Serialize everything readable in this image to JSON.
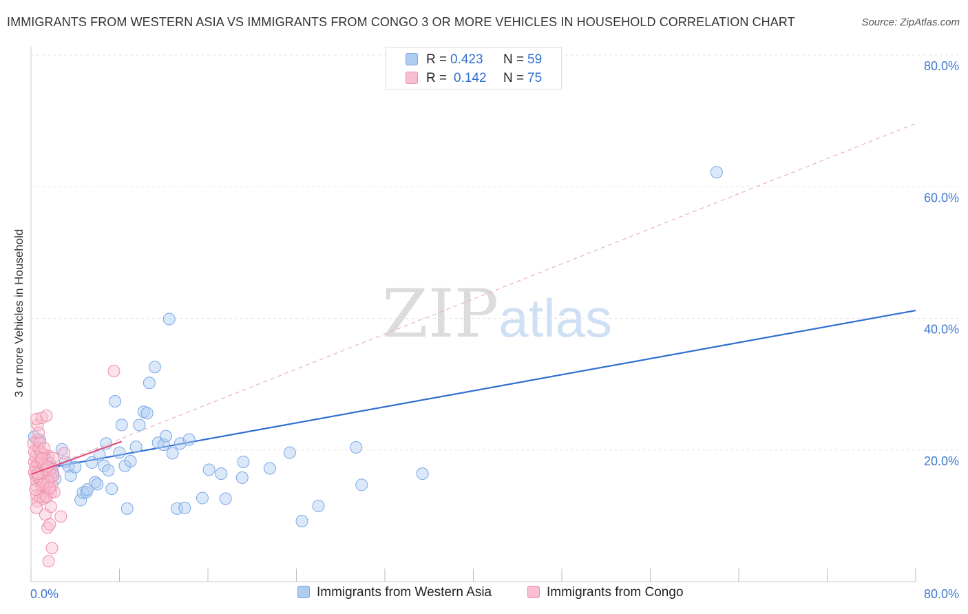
{
  "title": "IMMIGRANTS FROM WESTERN ASIA VS IMMIGRANTS FROM CONGO 3 OR MORE VEHICLES IN HOUSEHOLD CORRELATION CHART",
  "source": "Source: ZipAtlas.com",
  "watermark": {
    "zip": "ZIP",
    "atlas": "atlas"
  },
  "legend": {
    "r_label": "R =",
    "n_label": "N =",
    "series": [
      {
        "name": "Immigrants from Western Asia",
        "r": "0.423",
        "n": "59",
        "fill": "#aecbf2",
        "stroke": "#7aa6e6"
      },
      {
        "name": "Immigrants from Congo",
        "r": "0.142",
        "n": "75",
        "fill": "#f8bfd0",
        "stroke": "#ee8fab"
      }
    ]
  },
  "chart_data": {
    "type": "scatter",
    "title": "IMMIGRANTS FROM WESTERN ASIA VS IMMIGRANTS FROM CONGO 3 OR MORE VEHICLES IN HOUSEHOLD CORRELATION CHART",
    "xlabel": "",
    "ylabel": "3 or more Vehicles in Household",
    "xlim": [
      0,
      80
    ],
    "ylim": [
      0,
      80
    ],
    "x_tick_labels": [
      "0.0%",
      "80.0%"
    ],
    "y_tick_labels": [
      "20.0%",
      "40.0%",
      "60.0%",
      "80.0%"
    ],
    "y_ticks": [
      20,
      40,
      60,
      80
    ],
    "grid": "horizontal dashed",
    "legend_position": "top-center",
    "series": [
      {
        "name": "Immigrants from Western Asia",
        "color": "#4a86d8",
        "r": 0.423,
        "n": 59,
        "trend": {
          "x": [
            0,
            80
          ],
          "y": [
            16.8,
            41.2
          ],
          "style": "solid",
          "color": "#2f6fd0"
        },
        "points": [
          [
            0.3,
            22
          ],
          [
            0.8,
            21.5
          ],
          [
            1.2,
            19.2
          ],
          [
            1.5,
            18.2
          ],
          [
            1.8,
            17.4
          ],
          [
            2.2,
            15.6
          ],
          [
            2.8,
            20.1
          ],
          [
            3.1,
            18.2
          ],
          [
            3.4,
            17.5
          ],
          [
            3.6,
            16.1
          ],
          [
            4.0,
            17.4
          ],
          [
            4.5,
            12.4
          ],
          [
            4.7,
            13.5
          ],
          [
            5.0,
            13.6
          ],
          [
            5.1,
            14.0
          ],
          [
            5.5,
            18.1
          ],
          [
            5.8,
            15.1
          ],
          [
            6.2,
            19.3
          ],
          [
            6.6,
            17.6
          ],
          [
            6.8,
            21.0
          ],
          [
            7.0,
            16.9
          ],
          [
            7.3,
            14.1
          ],
          [
            7.6,
            27.4
          ],
          [
            8.0,
            19.6
          ],
          [
            8.2,
            23.8
          ],
          [
            8.5,
            17.6
          ],
          [
            8.7,
            11.1
          ],
          [
            9.0,
            18.3
          ],
          [
            9.8,
            23.8
          ],
          [
            10.2,
            25.8
          ],
          [
            10.5,
            25.6
          ],
          [
            10.7,
            30.2
          ],
          [
            11.2,
            32.6
          ],
          [
            11.5,
            21.1
          ],
          [
            12.0,
            20.8
          ],
          [
            12.2,
            22.1
          ],
          [
            12.5,
            39.9
          ],
          [
            12.8,
            19.5
          ],
          [
            13.2,
            11.1
          ],
          [
            13.5,
            21.0
          ],
          [
            13.9,
            11.2
          ],
          [
            14.3,
            21.6
          ],
          [
            15.5,
            12.7
          ],
          [
            16.1,
            17.0
          ],
          [
            17.2,
            16.4
          ],
          [
            17.6,
            12.6
          ],
          [
            19.1,
            15.8
          ],
          [
            19.2,
            18.2
          ],
          [
            21.6,
            17.2
          ],
          [
            23.4,
            19.6
          ],
          [
            24.5,
            9.2
          ],
          [
            26.0,
            11.5
          ],
          [
            29.4,
            20.4
          ],
          [
            29.9,
            14.7
          ],
          [
            35.4,
            16.4
          ],
          [
            62.0,
            62.2
          ],
          [
            2.0,
            16.5
          ],
          [
            6.0,
            14.8
          ],
          [
            9.5,
            20.5
          ]
        ]
      },
      {
        "name": "Immigrants from Congo",
        "color": "#e85d8a",
        "r": 0.142,
        "n": 75,
        "trend": {
          "x": [
            0,
            8.2
          ],
          "y": [
            16.3,
            21.3
          ],
          "style": "solid",
          "color": "#e24d7e"
        },
        "trend_extended": {
          "x": [
            0,
            80
          ],
          "y": [
            16.3,
            69.6
          ],
          "style": "dashed",
          "color": "#ebaec2"
        },
        "points": [
          [
            0.2,
            21.0
          ],
          [
            0.3,
            19.8
          ],
          [
            0.3,
            18.2
          ],
          [
            0.4,
            17.4
          ],
          [
            0.4,
            16.2
          ],
          [
            0.5,
            15.4
          ],
          [
            0.5,
            14.5
          ],
          [
            0.5,
            13.1
          ],
          [
            0.6,
            12.2
          ],
          [
            0.6,
            21.5
          ],
          [
            0.7,
            20.2
          ],
          [
            0.7,
            18.9
          ],
          [
            0.8,
            17.6
          ],
          [
            0.8,
            16.8
          ],
          [
            0.9,
            16.0
          ],
          [
            0.9,
            15.1
          ],
          [
            1.0,
            14.3
          ],
          [
            1.0,
            13.4
          ],
          [
            1.1,
            19.4
          ],
          [
            1.1,
            17.9
          ],
          [
            1.2,
            16.6
          ],
          [
            1.2,
            15.7
          ],
          [
            1.3,
            14.1
          ],
          [
            1.3,
            13.0
          ],
          [
            1.4,
            18.6
          ],
          [
            1.4,
            17.1
          ],
          [
            1.5,
            16.3
          ],
          [
            1.5,
            15.0
          ],
          [
            1.6,
            19.1
          ],
          [
            1.6,
            13.9
          ],
          [
            1.7,
            18.0
          ],
          [
            1.7,
            16.9
          ],
          [
            1.8,
            15.8
          ],
          [
            1.8,
            13.5
          ],
          [
            1.9,
            17.3
          ],
          [
            1.9,
            14.6
          ],
          [
            2.0,
            18.8
          ],
          [
            2.0,
            16.1
          ],
          [
            0.6,
            23.8
          ],
          [
            0.7,
            22.6
          ],
          [
            0.5,
            24.7
          ],
          [
            1.0,
            24.9
          ],
          [
            1.4,
            25.2
          ],
          [
            0.8,
            21.1
          ],
          [
            1.1,
            12.6
          ],
          [
            1.3,
            10.2
          ],
          [
            1.5,
            8.2
          ],
          [
            1.7,
            8.7
          ],
          [
            1.8,
            11.4
          ],
          [
            1.9,
            5.1
          ],
          [
            1.6,
            3.1
          ],
          [
            2.7,
            9.9
          ],
          [
            3.0,
            19.5
          ],
          [
            7.5,
            32.0
          ],
          [
            0.4,
            19.0
          ],
          [
            0.6,
            17.9
          ],
          [
            0.9,
            18.4
          ],
          [
            1.2,
            17.7
          ],
          [
            0.3,
            16.6
          ],
          [
            0.7,
            15.9
          ],
          [
            1.0,
            16.4
          ],
          [
            1.3,
            17.0
          ],
          [
            1.6,
            15.3
          ],
          [
            0.8,
            12.9
          ],
          [
            1.1,
            14.8
          ],
          [
            1.4,
            12.8
          ],
          [
            0.5,
            11.2
          ],
          [
            2.1,
            13.6
          ],
          [
            0.9,
            19.7
          ],
          [
            1.2,
            20.3
          ],
          [
            0.4,
            14.0
          ],
          [
            1.7,
            14.2
          ],
          [
            0.6,
            16.4
          ],
          [
            1.0,
            18.7
          ],
          [
            1.5,
            17.5
          ]
        ]
      }
    ]
  }
}
